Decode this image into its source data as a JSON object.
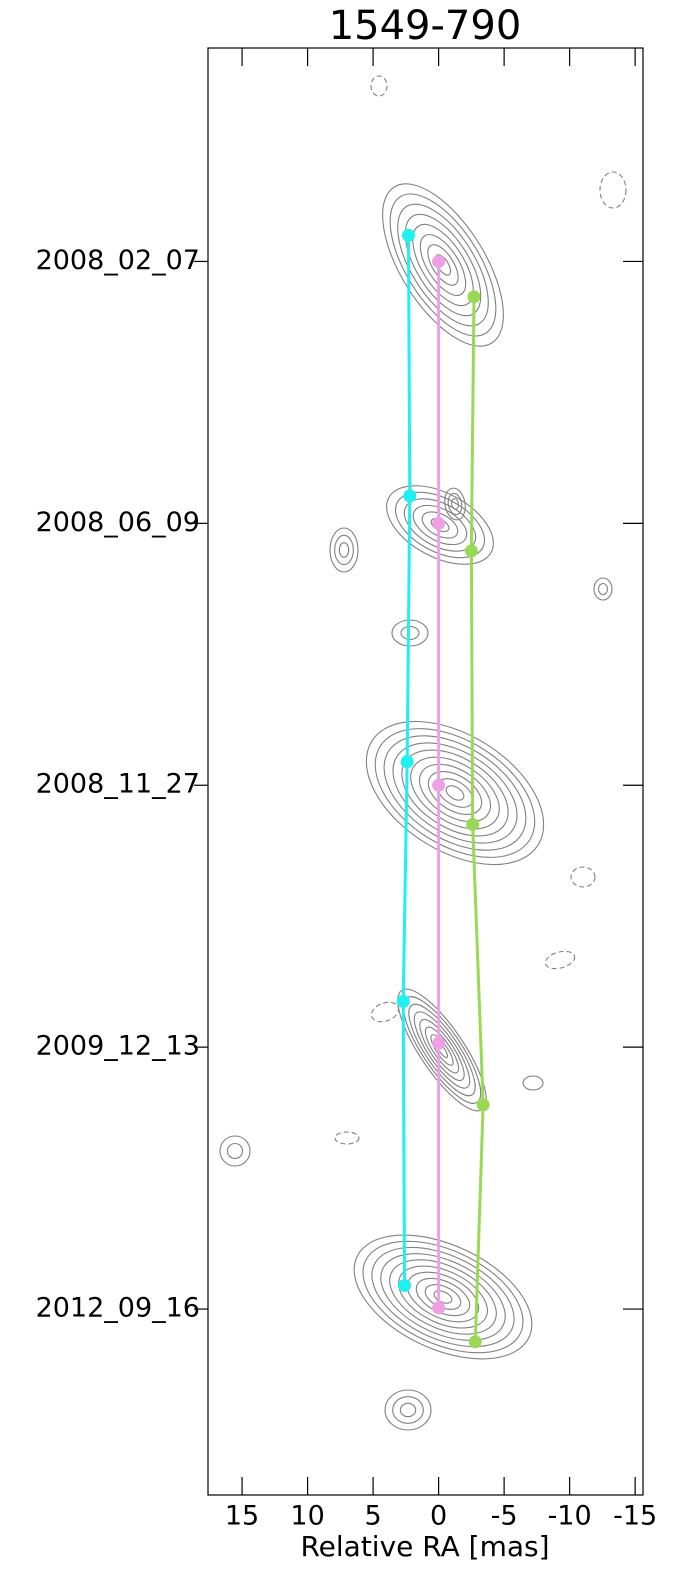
{
  "chart_data": {
    "type": "scatter",
    "title": "1549-790",
    "x_label": "Relative RA [mas]",
    "xlim": [
      17.6,
      -15.6
    ],
    "xticks": [
      15,
      10,
      5,
      0,
      -5,
      -10,
      -15
    ],
    "ylim": [
      -94.2,
      16.3
    ],
    "yticks": [
      {
        "value": 0,
        "label": "2008_02_07"
      },
      {
        "value": -20,
        "label": "2008_06_09"
      },
      {
        "value": -40,
        "label": "2008_11_27"
      },
      {
        "value": -60,
        "label": "2009_12_13"
      },
      {
        "value": -80,
        "label": "2012_09_16"
      }
    ],
    "series": [
      {
        "color": "#1ff0f0",
        "x": [
          2.3,
          2.2,
          2.4,
          2.7,
          2.6
        ],
        "values": [
          2.0,
          -17.9,
          -38.2,
          -56.5,
          -78.2
        ]
      },
      {
        "color": "#ee9fe6",
        "x": [
          0,
          0,
          0,
          0,
          0
        ],
        "values": [
          0,
          -20,
          -40,
          -59.7,
          -79.9
        ]
      },
      {
        "color": "#9ad955",
        "x": [
          -2.7,
          -2.5,
          -2.6,
          -3.4,
          -2.8
        ],
        "values": [
          -2.7,
          -22.1,
          -43.0,
          -64.4,
          -82.5
        ]
      }
    ]
  }
}
